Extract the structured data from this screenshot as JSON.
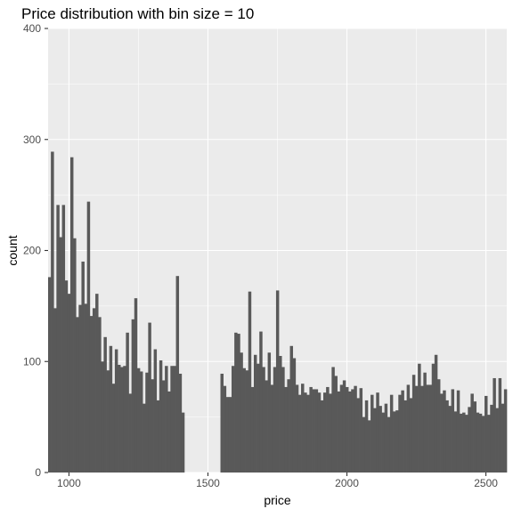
{
  "chart_data": {
    "type": "bar",
    "title": "Price distribution with bin size = 10",
    "xlabel": "price",
    "ylabel": "count",
    "bin_width": 10,
    "x_start": 925,
    "xlim": [
      925,
      2575
    ],
    "ylim": [
      0,
      400
    ],
    "x_ticks": [
      1000,
      1500,
      2000,
      2500
    ],
    "y_ticks": [
      0,
      100,
      200,
      300,
      400
    ],
    "grid": true,
    "legend": "none",
    "colors": {
      "panel": "#EBEBEB",
      "grid": "#FFFFFF",
      "bar": "#595959",
      "tick_text": "#4D4D4D"
    },
    "values": [
      176,
      289,
      148,
      241,
      212,
      241,
      173,
      161,
      284,
      211,
      140,
      151,
      190,
      152,
      244,
      141,
      148,
      161,
      140,
      100,
      122,
      92,
      114,
      80,
      111,
      97,
      95,
      96,
      126,
      71,
      138,
      157,
      94,
      91,
      62,
      90,
      135,
      84,
      111,
      65,
      101,
      83,
      96,
      73,
      96,
      96,
      177,
      89,
      54,
      0,
      0,
      0,
      0,
      0,
      0,
      0,
      0,
      0,
      0,
      0,
      0,
      0,
      89,
      78,
      68,
      68,
      96,
      126,
      125,
      108,
      94,
      92,
      163,
      77,
      106,
      98,
      127,
      95,
      83,
      108,
      79,
      95,
      164,
      105,
      95,
      77,
      84,
      114,
      103,
      79,
      70,
      80,
      72,
      70,
      77,
      75,
      75,
      72,
      65,
      72,
      77,
      71,
      95,
      87,
      73,
      79,
      83,
      77,
      73,
      75,
      78,
      67,
      76,
      50,
      65,
      47,
      70,
      58,
      72,
      60,
      54,
      62,
      50,
      70,
      55,
      56,
      70,
      74,
      65,
      79,
      67,
      88,
      78,
      98,
      78,
      90,
      79,
      79,
      98,
      106,
      84,
      71,
      74,
      65,
      60,
      75,
      55,
      74,
      53,
      54,
      52,
      59,
      71,
      64,
      54,
      53,
      51,
      69,
      52,
      61,
      85,
      58,
      85,
      62,
      75
    ]
  }
}
